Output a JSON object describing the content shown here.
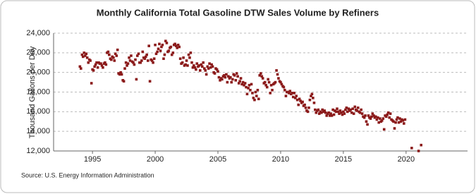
{
  "chart_data": {
    "type": "scatter",
    "title": "Monthly California Total Gasoline DTW Sales Volume by Refiners",
    "y_label": "Thousand Gallons per Day",
    "source": "Source: U.S. Energy Information Administration",
    "color": "#8b1a1a",
    "grid": true,
    "xlim": [
      1991.9,
      2024.9
    ],
    "xticks": [
      1995,
      2000,
      2005,
      2010,
      2015,
      2020
    ],
    "ylim": [
      12000,
      24000
    ],
    "yticks": [
      {
        "value": 12000,
        "label": "12,000"
      },
      {
        "value": 14000,
        "label": "14,000"
      },
      {
        "value": 16000,
        "label": "16,000"
      },
      {
        "value": 18000,
        "label": "18,000"
      },
      {
        "value": 20000,
        "label": "20,000"
      },
      {
        "value": 22000,
        "label": "22,000"
      },
      {
        "value": 24000,
        "label": "24,000"
      }
    ],
    "x": [
      1994,
      1994.08,
      1994.17,
      1994.25,
      1994.33,
      1994.42,
      1994.5,
      1994.58,
      1994.67,
      1994.75,
      1994.83,
      1994.92,
      1995,
      1995.08,
      1995.17,
      1995.25,
      1995.33,
      1995.42,
      1995.5,
      1995.58,
      1995.67,
      1995.75,
      1995.83,
      1995.92,
      1996,
      1996.08,
      1996.17,
      1996.25,
      1996.33,
      1996.42,
      1996.5,
      1996.58,
      1996.67,
      1996.75,
      1996.83,
      1996.92,
      1997,
      1997.08,
      1997.17,
      1997.25,
      1997.33,
      1997.42,
      1997.5,
      1997.58,
      1997.67,
      1997.75,
      1997.83,
      1997.92,
      1998,
      1998.08,
      1998.17,
      1998.25,
      1998.33,
      1998.42,
      1998.5,
      1998.58,
      1998.67,
      1998.75,
      1998.83,
      1998.92,
      1999,
      1999.08,
      1999.17,
      1999.25,
      1999.33,
      1999.42,
      1999.5,
      1999.58,
      1999.67,
      1999.75,
      1999.83,
      1999.92,
      2000,
      2000.08,
      2000.17,
      2000.25,
      2000.33,
      2000.42,
      2000.5,
      2000.58,
      2000.67,
      2000.75,
      2000.83,
      2000.92,
      2001,
      2001.08,
      2001.17,
      2001.25,
      2001.33,
      2001.42,
      2001.5,
      2001.58,
      2001.67,
      2001.75,
      2001.83,
      2001.92,
      2002,
      2002.08,
      2002.17,
      2002.25,
      2002.33,
      2002.42,
      2002.5,
      2002.58,
      2002.67,
      2002.75,
      2002.83,
      2002.92,
      2003,
      2003.08,
      2003.17,
      2003.25,
      2003.33,
      2003.42,
      2003.5,
      2003.58,
      2003.67,
      2003.75,
      2003.83,
      2003.92,
      2004,
      2004.08,
      2004.17,
      2004.25,
      2004.33,
      2004.42,
      2004.5,
      2004.58,
      2004.67,
      2004.75,
      2004.83,
      2004.92,
      2005,
      2005.08,
      2005.17,
      2005.25,
      2005.33,
      2005.42,
      2005.5,
      2005.58,
      2005.67,
      2005.75,
      2005.83,
      2005.92,
      2006,
      2006.08,
      2006.17,
      2006.25,
      2006.33,
      2006.42,
      2006.5,
      2006.58,
      2006.67,
      2006.75,
      2006.83,
      2006.92,
      2007,
      2007.08,
      2007.17,
      2007.25,
      2007.33,
      2007.42,
      2007.5,
      2007.58,
      2007.67,
      2007.75,
      2007.83,
      2007.92,
      2008,
      2008.08,
      2008.17,
      2008.25,
      2008.33,
      2008.42,
      2008.5,
      2008.58,
      2008.67,
      2008.75,
      2008.83,
      2008.92,
      2009,
      2009.08,
      2009.17,
      2009.25,
      2009.33,
      2009.42,
      2009.5,
      2009.58,
      2009.67,
      2009.75,
      2009.83,
      2009.92,
      2010,
      2010.08,
      2010.17,
      2010.25,
      2010.33,
      2010.42,
      2010.5,
      2010.58,
      2010.67,
      2010.75,
      2010.83,
      2010.92,
      2011,
      2011.08,
      2011.17,
      2011.25,
      2011.33,
      2011.42,
      2011.5,
      2011.58,
      2011.67,
      2011.75,
      2011.83,
      2011.92,
      2012,
      2012.08,
      2012.17,
      2012.25,
      2012.33,
      2012.42,
      2012.5,
      2012.58,
      2012.67,
      2012.75,
      2012.83,
      2012.92,
      2013,
      2013.08,
      2013.17,
      2013.25,
      2013.33,
      2013.42,
      2013.5,
      2013.58,
      2013.67,
      2013.75,
      2013.83,
      2013.92,
      2014,
      2014.08,
      2014.17,
      2014.25,
      2014.33,
      2014.42,
      2014.5,
      2014.58,
      2014.67,
      2014.75,
      2014.83,
      2014.92,
      2015,
      2015.08,
      2015.17,
      2015.25,
      2015.33,
      2015.42,
      2015.5,
      2015.58,
      2015.67,
      2015.75,
      2015.83,
      2015.92,
      2016,
      2016.08,
      2016.17,
      2016.25,
      2016.33,
      2016.42,
      2016.5,
      2016.58,
      2016.67,
      2016.75,
      2016.83,
      2016.92,
      2017,
      2017.08,
      2017.17,
      2017.25,
      2017.33,
      2017.42,
      2017.5,
      2017.58,
      2017.67,
      2017.75,
      2017.83,
      2017.92,
      2018,
      2018.08,
      2018.17,
      2018.25,
      2018.33,
      2018.42,
      2018.5,
      2018.58,
      2018.67,
      2018.75,
      2018.83,
      2018.92,
      2019,
      2019.08,
      2019.17,
      2019.25,
      2019.33,
      2019.42,
      2019.5,
      2019.58,
      2019.67,
      2019.75,
      2019.83,
      2019.92,
      2020.45,
      2021,
      2021.2
    ],
    "values": [
      20600,
      20400,
      21800,
      21600,
      22000,
      21700,
      21900,
      21500,
      21000,
      21300,
      21200,
      18900,
      20300,
      20200,
      20600,
      20800,
      21000,
      20500,
      21000,
      20900,
      20900,
      20700,
      20500,
      20900,
      21000,
      20800,
      22000,
      22100,
      21800,
      21400,
      21300,
      21600,
      21500,
      21200,
      21900,
      21700,
      22300,
      19900,
      19800,
      20000,
      19800,
      19200,
      19100,
      20400,
      21000,
      20700,
      20900,
      21500,
      21200,
      21700,
      21100,
      21000,
      20800,
      21300,
      19300,
      21700,
      21900,
      21000,
      21000,
      21200,
      22100,
      21500,
      21400,
      21600,
      21800,
      21200,
      22700,
      19100,
      21300,
      21200,
      21000,
      21400,
      22800,
      21900,
      22100,
      22400,
      22900,
      22200,
      22600,
      22800,
      21400,
      21800,
      23200,
      23000,
      22100,
      22200,
      22500,
      22600,
      21800,
      22000,
      22800,
      22900,
      22700,
      22500,
      22800,
      22600,
      21400,
      20900,
      21000,
      21500,
      20700,
      20800,
      21200,
      20700,
      21800,
      21500,
      22000,
      21000,
      20500,
      20700,
      20500,
      20300,
      20900,
      20600,
      20700,
      20200,
      20800,
      20600,
      21000,
      20400,
      20200,
      19800,
      20600,
      20400,
      20900,
      20500,
      20800,
      20600,
      20000,
      19900,
      20400,
      20300,
      20100,
      19500,
      19200,
      19400,
      19300,
      19600,
      19700,
      19500,
      19800,
      19000,
      19600,
      19400,
      19500,
      19000,
      19300,
      19800,
      19700,
      19200,
      19900,
      19600,
      18900,
      19100,
      19400,
      18800,
      19000,
      18700,
      18900,
      18500,
      17800,
      18400,
      18700,
      18200,
      18800,
      17900,
      17400,
      17200,
      18000,
      17600,
      18200,
      17300,
      19700,
      19900,
      19600,
      19400,
      18900,
      19000,
      18700,
      18500,
      19300,
      19000,
      17900,
      18700,
      18200,
      18800,
      18900,
      19000,
      20200,
      19800,
      19400,
      19100,
      19000,
      18800,
      18600,
      18500,
      18200,
      17600,
      18000,
      18000,
      17900,
      18100,
      17800,
      17900,
      17500,
      17900,
      17400,
      17600,
      17200,
      16700,
      17300,
      17100,
      16900,
      17000,
      16600,
      16700,
      16400,
      16100,
      16000,
      16400,
      17200,
      17600,
      17800,
      17400,
      16900,
      16200,
      15900,
      16100,
      16200,
      15800,
      16000,
      15900,
      16200,
      16000,
      16100,
      15900,
      15600,
      15800,
      15900,
      15600,
      15800,
      15600,
      16200,
      15700,
      16100,
      16000,
      16300,
      16000,
      15800,
      16100,
      15900,
      15700,
      16000,
      15800,
      16200,
      16400,
      16000,
      16300,
      16100,
      16200,
      15900,
      16300,
      15800,
      16500,
      16200,
      16100,
      16400,
      16000,
      15900,
      16200,
      15800,
      15500,
      15400,
      15600,
      15000,
      14700,
      15600,
      15400,
      15300,
      15500,
      15800,
      15600,
      15400,
      15500,
      15200,
      15400,
      14900,
      15300,
      15000,
      15100,
      15300,
      14200,
      15600,
      15500,
      15700,
      15900,
      15400,
      15800,
      15200,
      15100,
      15000,
      14300,
      14900,
      15200,
      15400,
      14900,
      15300,
      15000,
      15200,
      15100,
      14800,
      15200,
      12300,
      12000,
      12600
    ]
  }
}
